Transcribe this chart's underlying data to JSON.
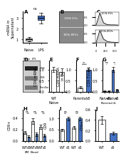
{
  "panel_A": {
    "ylabel": "mRNA in Supernatant",
    "groups": [
      "Naive",
      "LPS"
    ],
    "box_naive": [
      0.8,
      1.0,
      1.2,
      0.9,
      1.1
    ],
    "box_LPS": [
      2.5,
      3.0,
      3.5,
      2.8,
      3.2
    ],
    "color_naive": "#ffffff",
    "color_LPS": "#4472c4",
    "sig": "ns"
  },
  "bg_color": "#ffffff",
  "bar_edgecolor": "#000000",
  "errorbar_color": "#000000",
  "fig_label_fontsize": 5,
  "tick_fontsize": 3.5,
  "label_fontsize": 3.5
}
